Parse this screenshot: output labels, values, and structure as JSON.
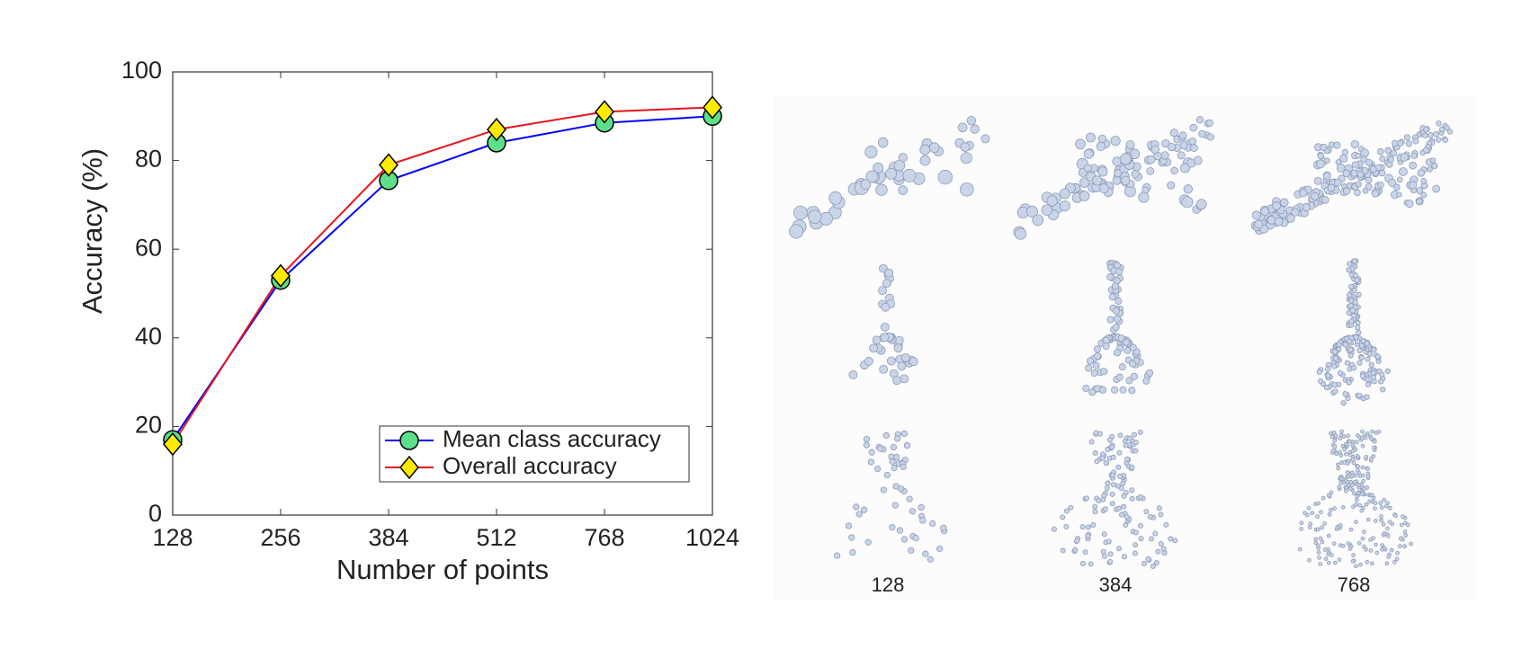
{
  "chart_data": {
    "type": "line",
    "xlabel": "Number of points",
    "ylabel": "Accuracy (%)",
    "categories": [
      "128",
      "256",
      "384",
      "512",
      "768",
      "1024"
    ],
    "series": [
      {
        "name": "Mean class accuracy",
        "color": "#0000ff",
        "marker_color": "#5ee08a",
        "marker": "circle",
        "values": [
          17,
          53,
          75.5,
          84,
          88.5,
          90
        ]
      },
      {
        "name": "Overall accuracy",
        "color": "#e8141c",
        "marker_color": "#ffeb00",
        "marker": "diamond",
        "values": [
          16,
          54,
          79,
          87,
          91,
          92
        ]
      }
    ],
    "ylim": [
      0,
      100
    ],
    "yticks": [
      0,
      20,
      40,
      60,
      80,
      100
    ],
    "legend": "lower right"
  },
  "figure": {
    "labels": [
      "128",
      "384",
      "768"
    ]
  }
}
